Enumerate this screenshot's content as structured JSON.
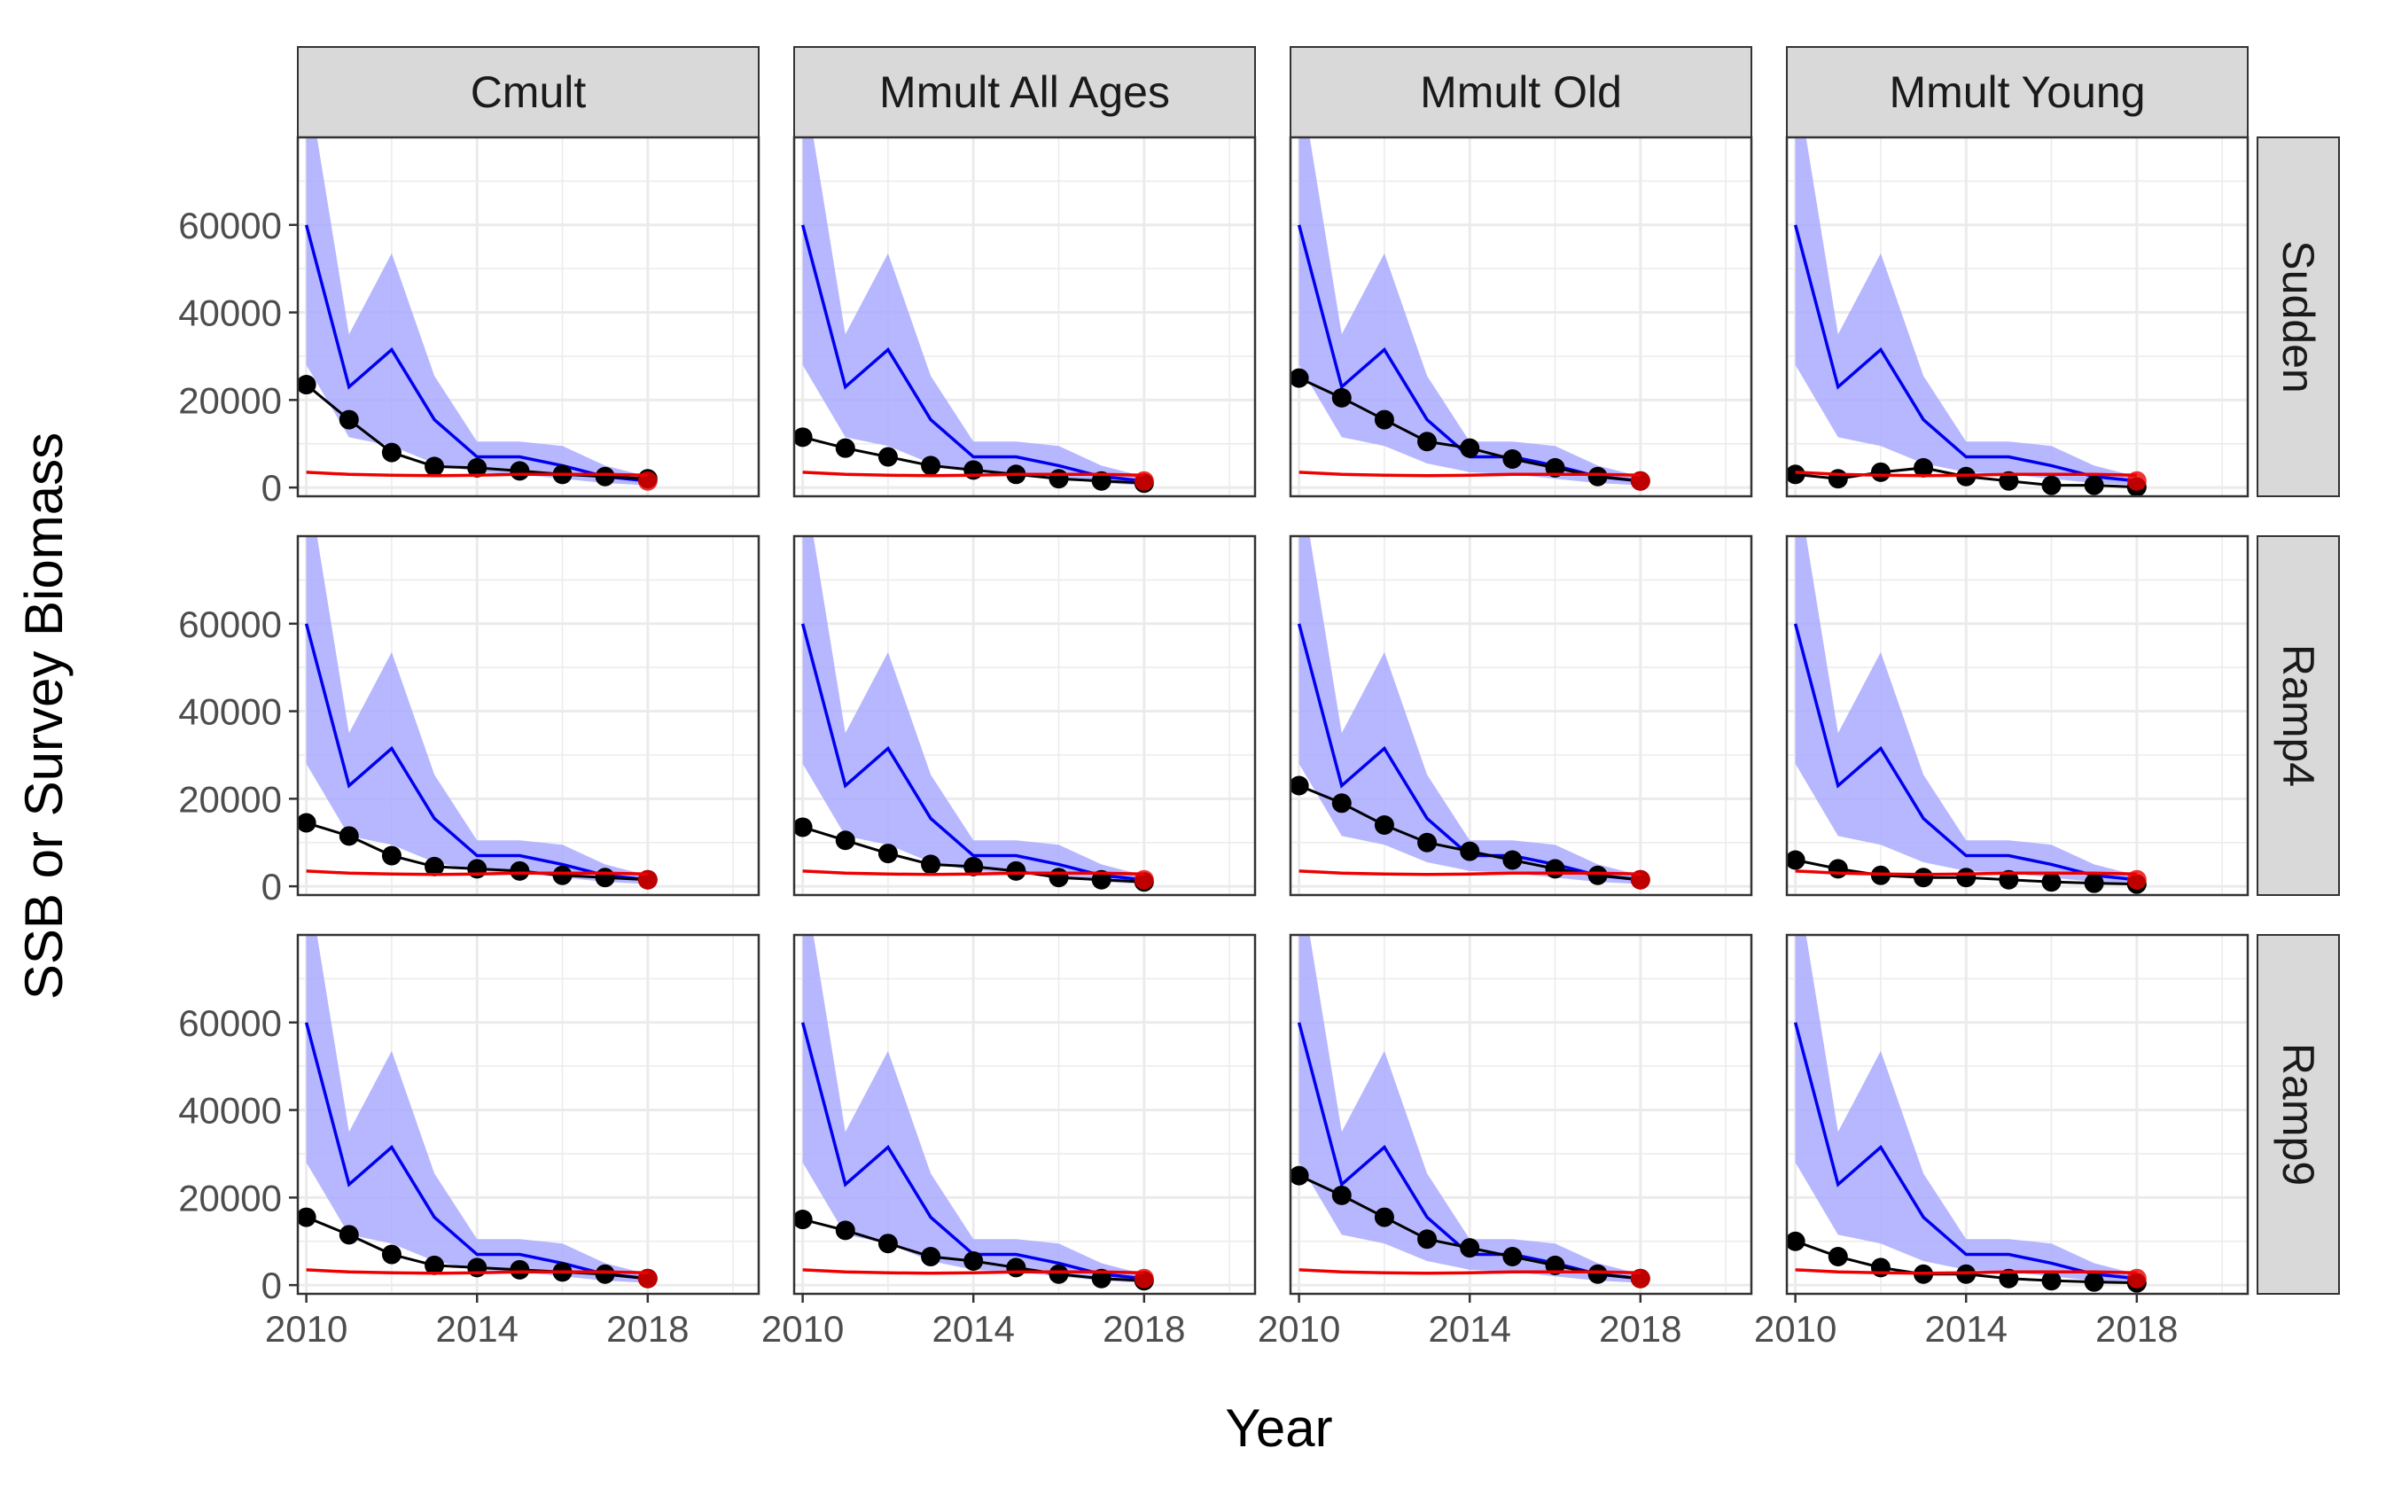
{
  "chart_data": {
    "type": "line",
    "facet_columns": [
      "Cmult",
      "Mmult All Ages",
      "Mmult Old",
      "Mmult Young"
    ],
    "facet_rows": [
      "Sudden",
      "Ramp4",
      "Ramp9"
    ],
    "xlabel": "Year",
    "ylabel": "SSB or Survey Biomass",
    "xlim": [
      2009.8,
      2020.6
    ],
    "ylim": [
      -2000,
      80000
    ],
    "x_ticks": [
      2010,
      2014,
      2018
    ],
    "x_tick_labels": [
      "2010",
      "2014",
      "2018"
    ],
    "y_ticks": [
      0,
      20000,
      40000,
      60000
    ],
    "y_tick_labels": [
      "0",
      "20000",
      "40000",
      "60000"
    ],
    "grid": true,
    "colors": {
      "ribbon": "#aaaaff",
      "estimate_line": "#0000ee",
      "points": "#000000",
      "reference_line": "#ee0000",
      "strip_fill": "#d9d9d9",
      "grid": "#ebebeb"
    },
    "years": [
      2010,
      2011,
      2012,
      2013,
      2014,
      2015,
      2016,
      2017,
      2018
    ],
    "blue_line": [
      60000,
      23000,
      31500,
      15500,
      7000,
      7000,
      5000,
      2500,
      1500
    ],
    "ribbon_lower": [
      28000,
      11500,
      9500,
      5500,
      3500,
      3000,
      2000,
      1000,
      500
    ],
    "ribbon_upper": [
      95000,
      35000,
      53500,
      25500,
      10500,
      10500,
      9500,
      5000,
      2500
    ],
    "red_line": [
      3500,
      3000,
      2800,
      2700,
      2800,
      3000,
      3000,
      3000,
      2800
    ],
    "last_red_point": 1500,
    "survey_points": {
      "Sudden": {
        "Cmult": [
          23500,
          15500,
          8000,
          4800,
          4500,
          3800,
          3000,
          2500,
          2000
        ],
        "Mmult All Ages": [
          11500,
          9000,
          7000,
          5000,
          4000,
          3000,
          2000,
          1500,
          1000
        ],
        "Mmult Old": [
          25000,
          20500,
          15500,
          10500,
          9000,
          6500,
          4500,
          2500,
          1500
        ],
        "Mmult Young": [
          3000,
          2000,
          3500,
          4500,
          2500,
          1500,
          500,
          500,
          100
        ]
      },
      "Ramp4": {
        "Cmult": [
          14500,
          11500,
          7000,
          4500,
          4000,
          3500,
          2500,
          2000,
          1500
        ],
        "Mmult All Ages": [
          13500,
          10500,
          7500,
          5000,
          4500,
          3500,
          2000,
          1500,
          1000
        ],
        "Mmult Old": [
          23000,
          19000,
          14000,
          10000,
          8000,
          6000,
          4000,
          2500,
          1500
        ],
        "Mmult Young": [
          6000,
          4000,
          2500,
          2000,
          2000,
          1500,
          1000,
          700,
          500
        ]
      },
      "Ramp9": {
        "Cmult": [
          15500,
          11500,
          7000,
          4500,
          4000,
          3500,
          3000,
          2500,
          1500
        ],
        "Mmult All Ages": [
          15000,
          12500,
          9500,
          6500,
          5500,
          4000,
          2500,
          1500,
          1000
        ],
        "Mmult Old": [
          25000,
          20500,
          15500,
          10500,
          8500,
          6500,
          4500,
          2500,
          1500
        ],
        "Mmult Young": [
          10000,
          6500,
          4000,
          2500,
          2500,
          1500,
          1000,
          700,
          500
        ]
      }
    }
  }
}
